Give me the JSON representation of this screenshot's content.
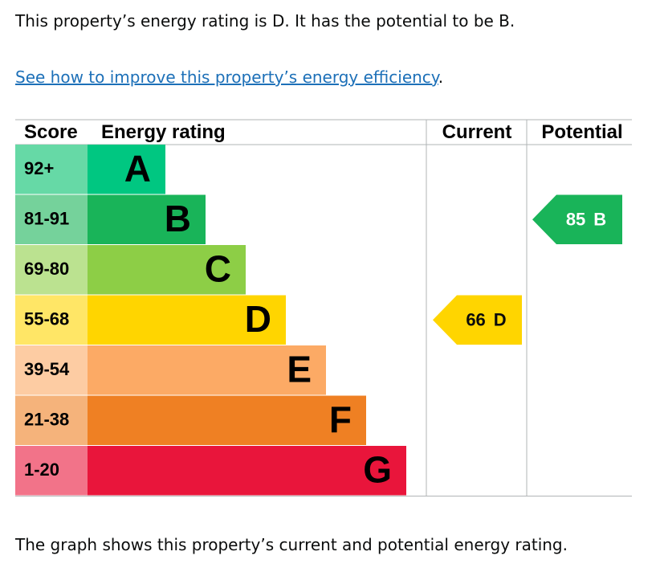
{
  "intro": "This property’s energy rating is D. It has the potential to be B.",
  "link": "See how to improve this property’s energy efficiency",
  "link_end": ".",
  "table": {
    "headers": [
      "Score",
      "Energy rating",
      "Current",
      "Potential"
    ],
    "bands": [
      {
        "score": "92+",
        "rating": "A"
      },
      {
        "score": "81-91",
        "rating": "B"
      },
      {
        "score": "69-80",
        "rating": "C"
      },
      {
        "score": "55-68",
        "rating": "D"
      },
      {
        "score": "39-54",
        "rating": "E"
      },
      {
        "score": "21-38",
        "rating": "F"
      },
      {
        "score": "1-20",
        "rating": "G"
      }
    ],
    "current": {
      "score": 66,
      "rating": "D"
    },
    "potential": {
      "score": 85,
      "rating": "B"
    }
  },
  "footer": "The graph shows this property’s current and potential energy rating."
}
